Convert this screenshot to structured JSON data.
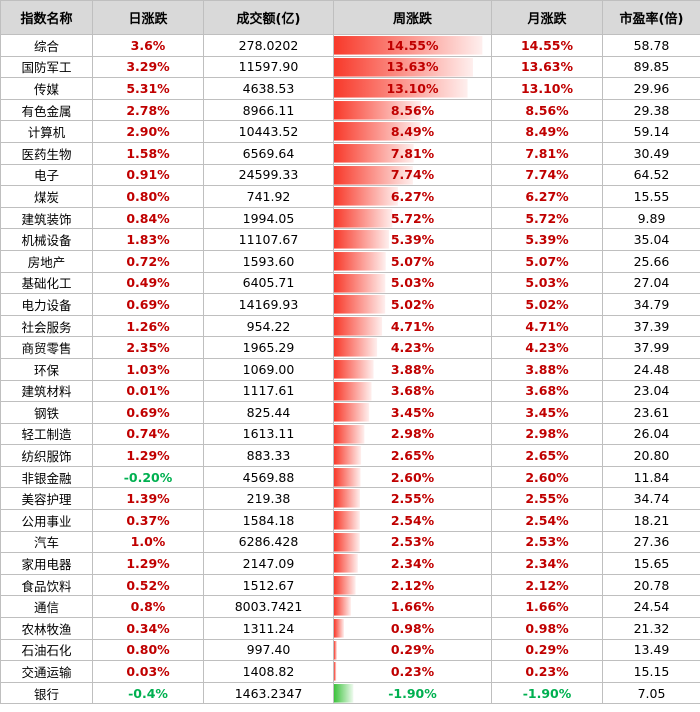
{
  "chart_data": {
    "type": "table",
    "columns": [
      "指数名称",
      "日涨跌",
      "成交额(亿)",
      "周涨跌",
      "月涨跌",
      "市盈率(倍)"
    ],
    "bar_colors": {
      "positive": "#f8392a",
      "negative": "#3cc23c"
    },
    "text_colors": {
      "positive": "#c00000",
      "negative": "#00b050"
    },
    "weekly_bar_max": 14.55,
    "rows": [
      {
        "name": "综合",
        "daily": "3.6%",
        "turnover": "278.0202",
        "weekly": "14.55%",
        "weekly_value": 14.55,
        "monthly": "14.55%",
        "pe": "58.78"
      },
      {
        "name": "国防军工",
        "daily": "3.29%",
        "turnover": "11597.90",
        "weekly": "13.63%",
        "weekly_value": 13.63,
        "monthly": "13.63%",
        "pe": "89.85"
      },
      {
        "name": "传媒",
        "daily": "5.31%",
        "turnover": "4638.53",
        "weekly": "13.10%",
        "weekly_value": 13.1,
        "monthly": "13.10%",
        "pe": "29.96"
      },
      {
        "name": "有色金属",
        "daily": "2.78%",
        "turnover": "8966.11",
        "weekly": "8.56%",
        "weekly_value": 8.56,
        "monthly": "8.56%",
        "pe": "29.38"
      },
      {
        "name": "计算机",
        "daily": "2.90%",
        "turnover": "10443.52",
        "weekly": "8.49%",
        "weekly_value": 8.49,
        "monthly": "8.49%",
        "pe": "59.14"
      },
      {
        "name": "医药生物",
        "daily": "1.58%",
        "turnover": "6569.64",
        "weekly": "7.81%",
        "weekly_value": 7.81,
        "monthly": "7.81%",
        "pe": "30.49"
      },
      {
        "name": "电子",
        "daily": "0.91%",
        "turnover": "24599.33",
        "weekly": "7.74%",
        "weekly_value": 7.74,
        "monthly": "7.74%",
        "pe": "64.52"
      },
      {
        "name": "煤炭",
        "daily": "0.80%",
        "turnover": "741.92",
        "weekly": "6.27%",
        "weekly_value": 6.27,
        "monthly": "6.27%",
        "pe": "15.55"
      },
      {
        "name": "建筑装饰",
        "daily": "0.84%",
        "turnover": "1994.05",
        "weekly": "5.72%",
        "weekly_value": 5.72,
        "monthly": "5.72%",
        "pe": "9.89"
      },
      {
        "name": "机械设备",
        "daily": "1.83%",
        "turnover": "11107.67",
        "weekly": "5.39%",
        "weekly_value": 5.39,
        "monthly": "5.39%",
        "pe": "35.04"
      },
      {
        "name": "房地产",
        "daily": "0.72%",
        "turnover": "1593.60",
        "weekly": "5.07%",
        "weekly_value": 5.07,
        "monthly": "5.07%",
        "pe": "25.66"
      },
      {
        "name": "基础化工",
        "daily": "0.49%",
        "turnover": "6405.71",
        "weekly": "5.03%",
        "weekly_value": 5.03,
        "monthly": "5.03%",
        "pe": "27.04"
      },
      {
        "name": "电力设备",
        "daily": "0.69%",
        "turnover": "14169.93",
        "weekly": "5.02%",
        "weekly_value": 5.02,
        "monthly": "5.02%",
        "pe": "34.79"
      },
      {
        "name": "社会服务",
        "daily": "1.26%",
        "turnover": "954.22",
        "weekly": "4.71%",
        "weekly_value": 4.71,
        "monthly": "4.71%",
        "pe": "37.39"
      },
      {
        "name": "商贸零售",
        "daily": "2.35%",
        "turnover": "1965.29",
        "weekly": "4.23%",
        "weekly_value": 4.23,
        "monthly": "4.23%",
        "pe": "37.99"
      },
      {
        "name": "环保",
        "daily": "1.03%",
        "turnover": "1069.00",
        "weekly": "3.88%",
        "weekly_value": 3.88,
        "monthly": "3.88%",
        "pe": "24.48"
      },
      {
        "name": "建筑材料",
        "daily": "0.01%",
        "turnover": "1117.61",
        "weekly": "3.68%",
        "weekly_value": 3.68,
        "monthly": "3.68%",
        "pe": "23.04"
      },
      {
        "name": "钢铁",
        "daily": "0.69%",
        "turnover": "825.44",
        "weekly": "3.45%",
        "weekly_value": 3.45,
        "monthly": "3.45%",
        "pe": "23.61"
      },
      {
        "name": "轻工制造",
        "daily": "0.74%",
        "turnover": "1613.11",
        "weekly": "2.98%",
        "weekly_value": 2.98,
        "monthly": "2.98%",
        "pe": "26.04"
      },
      {
        "name": "纺织服饰",
        "daily": "1.29%",
        "turnover": "883.33",
        "weekly": "2.65%",
        "weekly_value": 2.65,
        "monthly": "2.65%",
        "pe": "20.80"
      },
      {
        "name": "非银金融",
        "daily": "-0.20%",
        "turnover": "4569.88",
        "weekly": "2.60%",
        "weekly_value": 2.6,
        "monthly": "2.60%",
        "pe": "11.84"
      },
      {
        "name": "美容护理",
        "daily": "1.39%",
        "turnover": "219.38",
        "weekly": "2.55%",
        "weekly_value": 2.55,
        "monthly": "2.55%",
        "pe": "34.74"
      },
      {
        "name": "公用事业",
        "daily": "0.37%",
        "turnover": "1584.18",
        "weekly": "2.54%",
        "weekly_value": 2.54,
        "monthly": "2.54%",
        "pe": "18.21"
      },
      {
        "name": "汽车",
        "daily": "1.0%",
        "turnover": "6286.428",
        "weekly": "2.53%",
        "weekly_value": 2.53,
        "monthly": "2.53%",
        "pe": "27.36"
      },
      {
        "name": "家用电器",
        "daily": "1.29%",
        "turnover": "2147.09",
        "weekly": "2.34%",
        "weekly_value": 2.34,
        "monthly": "2.34%",
        "pe": "15.65"
      },
      {
        "name": "食品饮料",
        "daily": "0.52%",
        "turnover": "1512.67",
        "weekly": "2.12%",
        "weekly_value": 2.12,
        "monthly": "2.12%",
        "pe": "20.78"
      },
      {
        "name": "通信",
        "daily": "0.8%",
        "turnover": "8003.7421",
        "weekly": "1.66%",
        "weekly_value": 1.66,
        "monthly": "1.66%",
        "pe": "24.54"
      },
      {
        "name": "农林牧渔",
        "daily": "0.34%",
        "turnover": "1311.24",
        "weekly": "0.98%",
        "weekly_value": 0.98,
        "monthly": "0.98%",
        "pe": "21.32"
      },
      {
        "name": "石油石化",
        "daily": "0.80%",
        "turnover": "997.40",
        "weekly": "0.29%",
        "weekly_value": 0.29,
        "monthly": "0.29%",
        "pe": "13.49"
      },
      {
        "name": "交通运输",
        "daily": "0.03%",
        "turnover": "1408.82",
        "weekly": "0.23%",
        "weekly_value": 0.23,
        "monthly": "0.23%",
        "pe": "15.15"
      },
      {
        "name": "银行",
        "daily": "-0.4%",
        "turnover": "1463.2347",
        "weekly": "-1.90%",
        "weekly_value": -1.9,
        "monthly": "-1.90%",
        "pe": "7.05"
      }
    ]
  }
}
